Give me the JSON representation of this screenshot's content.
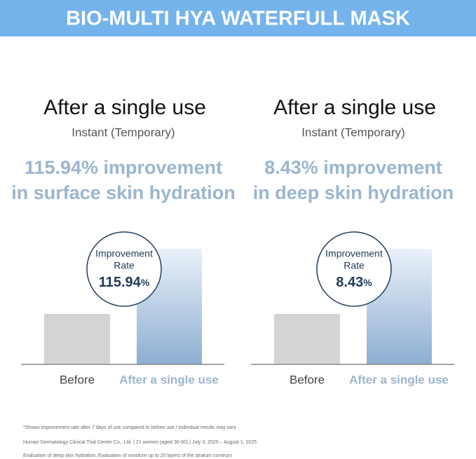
{
  "header": {
    "title": "BIO-MULTI HYA WATERFULL MASK"
  },
  "panels": [
    {
      "heading": "After a single use",
      "subheading": "Instant (Temporary)",
      "headline": [
        "115.94% improvement",
        "in surface skin hydration"
      ],
      "badge": {
        "label": [
          "Improvement",
          "Rate"
        ],
        "value": "115.94",
        "unit": "%"
      },
      "categories": [
        "Before",
        "After a single use"
      ]
    },
    {
      "heading": "After a single use",
      "subheading": "Instant (Temporary)",
      "headline": [
        "8.43% improvement",
        "in deep skin hydration"
      ],
      "badge": {
        "label": [
          "Improvement",
          "Rate"
        ],
        "value": "8.43",
        "unit": "%"
      },
      "categories": [
        "Before",
        "After a single use"
      ]
    }
  ],
  "footnotes": [
    "*Shows improvement rate after 7 days of use compared to before use / Individual results may vary",
    "Human Dermatology Clinical Trial Center Co., Ltd. | 21 women (aged 30-60) | July 3, 2025 – August 1, 2025",
    "Evaluation of deep skin hydration, Evaluation of moisture up to 20 layers of the stratum corneum"
  ]
}
